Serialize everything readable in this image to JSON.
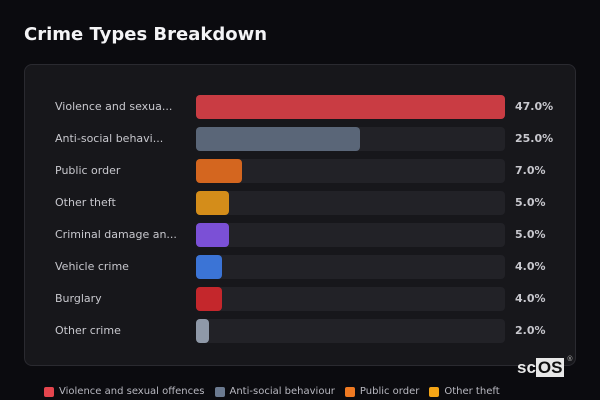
{
  "title": "Crime Types Breakdown",
  "rows": [
    {
      "label": "Violence and sexua...",
      "pct": "47.0%",
      "width": 100,
      "color": "#c93c43"
    },
    {
      "label": "Anti-social behavi...",
      "pct": "25.0%",
      "width": 53.2,
      "color": "#5a6678"
    },
    {
      "label": "Public order",
      "pct": "7.0%",
      "width": 14.9,
      "color": "#d4661f"
    },
    {
      "label": "Other theft",
      "pct": "5.0%",
      "width": 10.6,
      "color": "#d48d1a"
    },
    {
      "label": "Criminal damage an...",
      "pct": "5.0%",
      "width": 10.6,
      "color": "#7b50d6"
    },
    {
      "label": "Vehicle crime",
      "pct": "4.0%",
      "width": 8.5,
      "color": "#3b74d6"
    },
    {
      "label": "Burglary",
      "pct": "4.0%",
      "width": 8.5,
      "color": "#c4272c"
    },
    {
      "label": "Other crime",
      "pct": "2.0%",
      "width": 4.3,
      "color": "#8f99a8"
    }
  ],
  "legend": [
    {
      "label": "Violence and sexual offences",
      "color": "#e5454d"
    },
    {
      "label": "Anti-social behaviour",
      "color": "#6b7a90"
    },
    {
      "label": "Public order",
      "color": "#f07a22"
    },
    {
      "label": "Other theft",
      "color": "#f5a516"
    }
  ],
  "logo": {
    "sc": "sc",
    "os": "OS",
    "reg": "®"
  },
  "chart_data": {
    "type": "bar",
    "orientation": "horizontal",
    "title": "Crime Types Breakdown",
    "categories": [
      "Violence and sexual offences",
      "Anti-social behaviour",
      "Public order",
      "Other theft",
      "Criminal damage and arson",
      "Vehicle crime",
      "Burglary",
      "Other crime"
    ],
    "values": [
      47.0,
      25.0,
      7.0,
      5.0,
      5.0,
      4.0,
      4.0,
      2.0
    ],
    "unit": "%",
    "xlabel": "",
    "ylabel": "",
    "legend": [
      "Violence and sexual offences",
      "Anti-social behaviour",
      "Public order",
      "Other theft"
    ],
    "legend_position": "bottom",
    "grid": false
  }
}
